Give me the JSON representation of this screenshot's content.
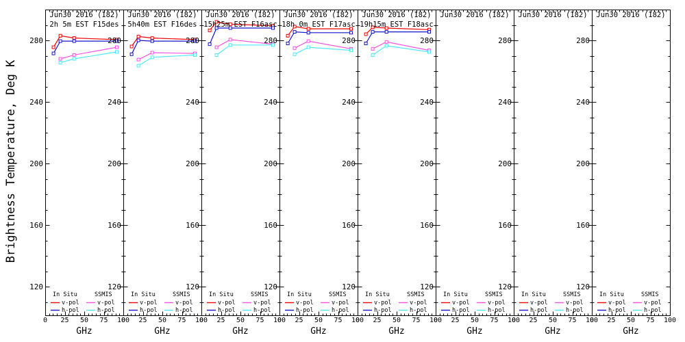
{
  "y_axis": {
    "title": "Brightness Temperature, Deg K",
    "ticks": [
      120,
      160,
      200,
      240,
      280
    ],
    "minor_step": 10,
    "range": [
      100,
      300
    ]
  },
  "x_axis": {
    "label": "GHz",
    "ticks": [
      0,
      25,
      50,
      75,
      100
    ],
    "minor_step": 5,
    "range": [
      0,
      100
    ]
  },
  "legend": {
    "col1_header": "In Situ",
    "col2_header": "SSMIS",
    "vpol_label": "v-pol",
    "hpol_label": "h-pol"
  },
  "colors": {
    "in_situ_v": "#ee0000",
    "in_situ_h": "#1515c8",
    "ssmis_v": "#f754e4",
    "ssmis_h": "#50e8f8",
    "axis": "#000000",
    "background": "#ffffff"
  },
  "chart_data": [
    {
      "type": "line",
      "title": "Jun30 2016 (182)",
      "subtitle": "2h 5m EST F15des",
      "xlabel": "GHz",
      "ylabel": "Brightness Temperature, Deg K",
      "xlim": [
        0,
        100
      ],
      "ylim": [
        100,
        300
      ],
      "series": [
        {
          "name": "In Situ v-pol",
          "color_key": "in_situ_v",
          "x": [
            10.65,
            19.35,
            37,
            91.655
          ],
          "y": [
            275.5,
            283,
            281.5,
            280.5
          ]
        },
        {
          "name": "In Situ h-pol",
          "color_key": "in_situ_h",
          "x": [
            10.65,
            19.35,
            37,
            91.655
          ],
          "y": [
            271.5,
            279.5,
            279.5,
            279.5
          ]
        },
        {
          "name": "SSMIS v-pol",
          "color_key": "ssmis_v",
          "x": [
            19.35,
            37,
            91.655
          ],
          "y": [
            268,
            270.5,
            275.5
          ]
        },
        {
          "name": "SSMIS h-pol",
          "color_key": "ssmis_h",
          "x": [
            19.35,
            37,
            91.655
          ],
          "y": [
            265.5,
            268,
            272.5
          ]
        }
      ]
    },
    {
      "type": "line",
      "title": "Jun30 2016 (182)",
      "subtitle": "5h40m EST F16des",
      "xlabel": "GHz",
      "xlim": [
        0,
        100
      ],
      "ylim": [
        100,
        300
      ],
      "series": [
        {
          "name": "In Situ v-pol",
          "color_key": "in_situ_v",
          "x": [
            10.65,
            19.35,
            37,
            91.655
          ],
          "y": [
            276,
            282.5,
            281.5,
            280.5
          ]
        },
        {
          "name": "In Situ h-pol",
          "color_key": "in_situ_h",
          "x": [
            10.65,
            19.35,
            37,
            91.655
          ],
          "y": [
            271,
            280,
            279.5,
            279.5
          ]
        },
        {
          "name": "SSMIS v-pol",
          "color_key": "ssmis_v",
          "x": [
            19.35,
            37,
            91.655
          ],
          "y": [
            267.5,
            272,
            271.5
          ]
        },
        {
          "name": "SSMIS h-pol",
          "color_key": "ssmis_h",
          "x": [
            19.35,
            37,
            91.655
          ],
          "y": [
            263.5,
            269,
            270.5
          ]
        }
      ]
    },
    {
      "type": "line",
      "title": "Jun30 2016 (182)",
      "subtitle": "15h25m EST F16asc",
      "xlabel": "GHz",
      "xlim": [
        0,
        100
      ],
      "ylim": [
        100,
        300
      ],
      "series": [
        {
          "name": "In Situ v-pol",
          "color_key": "in_situ_v",
          "x": [
            10.65,
            19.35,
            37,
            91.655
          ],
          "y": [
            286.5,
            292,
            290.5,
            289.5
          ]
        },
        {
          "name": "In Situ h-pol",
          "color_key": "in_situ_h",
          "x": [
            10.65,
            19.35,
            37,
            91.655
          ],
          "y": [
            277.5,
            288,
            288,
            288
          ]
        },
        {
          "name": "SSMIS v-pol",
          "color_key": "ssmis_v",
          "x": [
            19.35,
            37,
            91.655
          ],
          "y": [
            275.5,
            280.5,
            277.5
          ]
        },
        {
          "name": "SSMIS h-pol",
          "color_key": "ssmis_h",
          "x": [
            19.35,
            37,
            91.655
          ],
          "y": [
            270.5,
            277,
            277
          ]
        }
      ]
    },
    {
      "type": "line",
      "title": "Jun30 2016 (182)",
      "subtitle": "18h 0m EST F17asc",
      "xlabel": "GHz",
      "xlim": [
        0,
        100
      ],
      "ylim": [
        100,
        300
      ],
      "series": [
        {
          "name": "In Situ v-pol",
          "color_key": "in_situ_v",
          "x": [
            10.65,
            19.35,
            37,
            91.655
          ],
          "y": [
            283,
            289,
            287.5,
            287.5
          ]
        },
        {
          "name": "In Situ h-pol",
          "color_key": "in_situ_h",
          "x": [
            10.65,
            19.35,
            37,
            91.655
          ],
          "y": [
            278,
            285.5,
            285,
            285
          ]
        },
        {
          "name": "SSMIS v-pol",
          "color_key": "ssmis_v",
          "x": [
            19.35,
            37,
            91.655
          ],
          "y": [
            275,
            279.5,
            274.5
          ]
        },
        {
          "name": "SSMIS h-pol",
          "color_key": "ssmis_h",
          "x": [
            19.35,
            37,
            91.655
          ],
          "y": [
            271,
            275.5,
            273.5
          ]
        }
      ]
    },
    {
      "type": "line",
      "title": "Jun30 2016 (182)",
      "subtitle": "19h15m EST F18asc",
      "xlabel": "GHz",
      "xlim": [
        0,
        100
      ],
      "ylim": [
        100,
        300
      ],
      "series": [
        {
          "name": "In Situ v-pol",
          "color_key": "in_situ_v",
          "x": [
            10.65,
            19.35,
            37,
            91.655
          ],
          "y": [
            284,
            288.5,
            288,
            287
          ]
        },
        {
          "name": "In Situ h-pol",
          "color_key": "in_situ_h",
          "x": [
            10.65,
            19.35,
            37,
            91.655
          ],
          "y": [
            278,
            285.5,
            285.5,
            285.5
          ]
        },
        {
          "name": "SSMIS v-pol",
          "color_key": "ssmis_v",
          "x": [
            19.35,
            37,
            91.655
          ],
          "y": [
            274.5,
            279,
            273.5
          ]
        },
        {
          "name": "SSMIS h-pol",
          "color_key": "ssmis_h",
          "x": [
            19.35,
            37,
            91.655
          ],
          "y": [
            270.5,
            276.5,
            272.5
          ]
        }
      ]
    },
    {
      "type": "line",
      "title": "Jun30 2016 (182)",
      "subtitle": "",
      "xlabel": "GHz",
      "xlim": [
        0,
        100
      ],
      "ylim": [
        100,
        300
      ],
      "series": []
    },
    {
      "type": "line",
      "title": "Jun30 2016 (182)",
      "subtitle": "",
      "xlabel": "GHz",
      "xlim": [
        0,
        100
      ],
      "ylim": [
        100,
        300
      ],
      "series": []
    },
    {
      "type": "line",
      "title": "Jun30 2016 (182)",
      "subtitle": "",
      "xlabel": "GHz",
      "xlim": [
        0,
        100
      ],
      "ylim": [
        100,
        300
      ],
      "series": []
    }
  ]
}
